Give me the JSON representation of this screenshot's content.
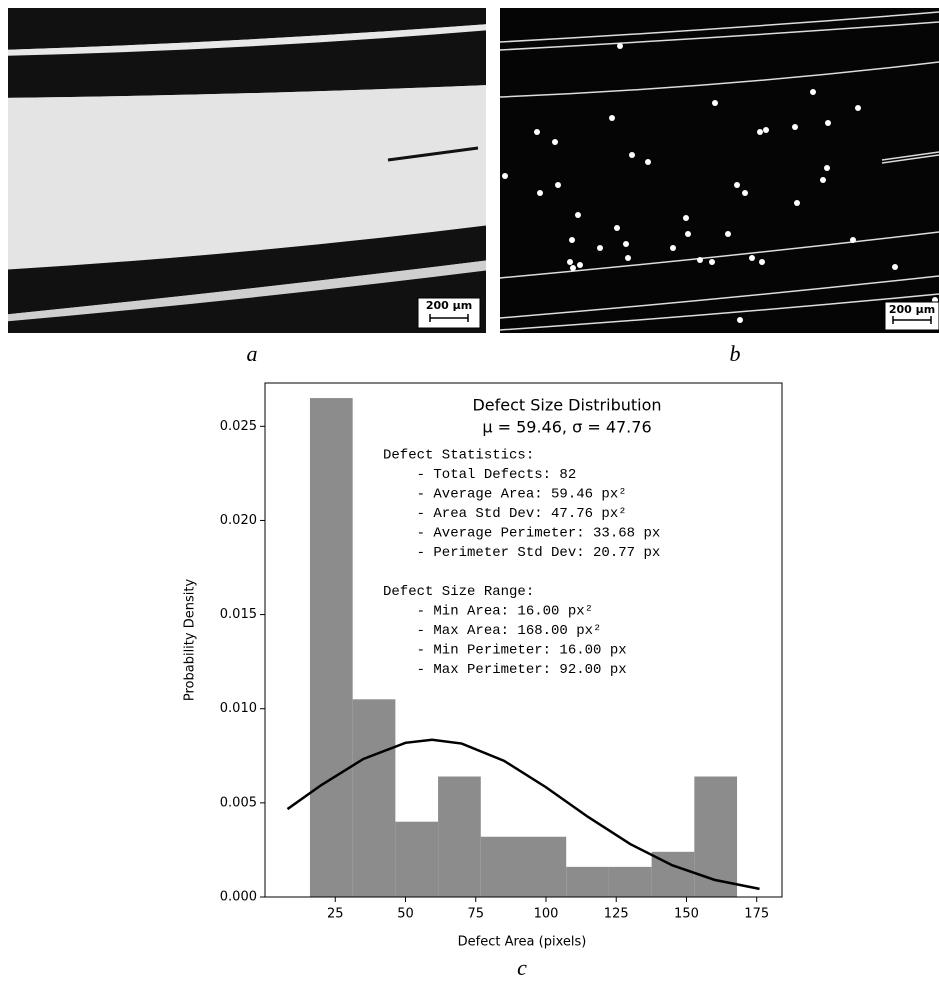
{
  "panels": [
    {
      "label": "a",
      "scale_bar": "200 µm"
    },
    {
      "label": "b",
      "scale_bar": "200 µm"
    },
    {
      "label": "c"
    }
  ],
  "chart_data": {
    "type": "histogram",
    "title": "Defect Size Distribution",
    "subtitle": "μ = 59.46, σ = 47.76",
    "xlabel": "Defect Area (pixels)",
    "ylabel": "Probability Density",
    "bins": [
      16,
      31.2,
      46.4,
      61.6,
      76.8,
      92,
      107.2,
      122.4,
      137.6,
      152.8,
      168
    ],
    "values": [
      0.0265,
      0.0105,
      0.004,
      0.0064,
      0.0032,
      0.0032,
      0.0016,
      0.0016,
      0.0024,
      0.0064
    ],
    "color": "#8c8c8c",
    "curve": {
      "color": "#000000",
      "x": [
        8,
        20,
        35,
        50,
        59.46,
        70,
        85,
        100,
        115,
        130,
        145,
        160,
        176
      ],
      "values": [
        0.00467,
        0.00594,
        0.00733,
        0.00819,
        0.00835,
        0.00815,
        0.00724,
        0.00583,
        0.00425,
        0.00281,
        0.00168,
        0.00091,
        0.00043
      ]
    },
    "annotation": [
      "Defect Statistics:",
      "    - Total Defects: 82",
      "    - Average Area: 59.46 px²",
      "    - Area Std Dev: 47.76 px²",
      "    - Average Perimeter: 33.68 px",
      "    - Perimeter Std Dev: 20.77 px",
      "",
      "Defect Size Range:",
      "    - Min Area: 16.00 px²",
      "    - Max Area: 168.00 px²",
      "    - Min Perimeter: 16.00 px",
      "    - Max Perimeter: 92.00 px"
    ],
    "xlim": [
      0,
      184
    ],
    "ylim": [
      0,
      0.0273
    ],
    "xticks": [
      25,
      50,
      75,
      100,
      125,
      150,
      175
    ],
    "yticks": [
      {
        "value": 0,
        "label": "0.000"
      },
      {
        "value": 0.005,
        "label": "0.005"
      },
      {
        "value": 0.01,
        "label": "0.010"
      },
      {
        "value": 0.015,
        "label": "0.015"
      },
      {
        "value": 0.02,
        "label": "0.020"
      },
      {
        "value": 0.025,
        "label": "0.025"
      }
    ]
  }
}
